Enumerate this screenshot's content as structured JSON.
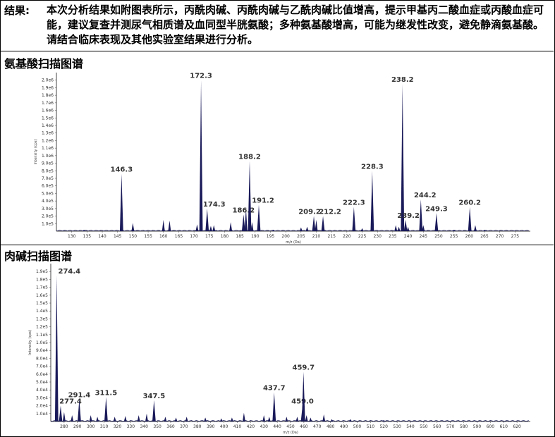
{
  "result": {
    "label": "结果:",
    "text": "本次分析结果如附图表所示，丙酰肉碱、丙酰肉碱与乙酰肉碱比值增高，提示甲基丙二酸血症或丙酸血症可能，建议复查并测尿气相质谱及血同型半胱氨酸；多种氨基酸增高，可能为继发性改变，避免静滴氨基酸。请结合临床表现及其他实验室结果进行分析。"
  },
  "chart_data": [
    {
      "type": "bar",
      "title": "氨基酸扫描图谱",
      "xlabel": "m/z (Da)",
      "ylabel": "Intensity (cps)",
      "xlim": [
        125,
        280
      ],
      "ylim": [
        0,
        2100000.0
      ],
      "xticks": [
        130,
        135,
        140,
        145,
        150,
        155,
        160,
        165,
        170,
        175,
        180,
        185,
        190,
        195,
        200,
        205,
        210,
        215,
        220,
        225,
        230,
        235,
        240,
        245,
        250,
        255,
        260,
        265,
        270,
        275
      ],
      "xtick_labels": [
        "130",
        "135",
        "140",
        "145",
        "150",
        "155",
        "160",
        "165",
        "170",
        "175",
        "180",
        "185",
        "190",
        "195",
        "200",
        "205",
        "210",
        "215",
        "220",
        "225",
        "230",
        "235",
        "240",
        "245",
        "250",
        "255",
        "260",
        "265",
        "270",
        "275"
      ],
      "yticks": [
        100000.0,
        200000.0,
        300000.0,
        400000.0,
        500000.0,
        600000.0,
        700000.0,
        800000.0,
        900000.0,
        1000000.0,
        1100000.0,
        1200000.0,
        1300000.0,
        1400000.0,
        1500000.0,
        1600000.0,
        1700000.0,
        1800000.0,
        1900000.0,
        2000000.0
      ],
      "ytick_labels": [
        "1.0e5",
        "2.0e5",
        "3.0e5",
        "4.0e5",
        "5.0e5",
        "6.0e5",
        "7.0e5",
        "8.0e5",
        "9.0e5",
        "1.0e6",
        "1.1e6",
        "1.2e6",
        "1.3e6",
        "1.4e6",
        "1.5e6",
        "1.6e6",
        "1.7e6",
        "1.8e6",
        "1.9e6",
        "2.0e6"
      ],
      "peaks": [
        {
          "x": 146.3,
          "y": 760000,
          "label": "146.3"
        },
        {
          "x": 172.3,
          "y": 2000000,
          "label": "172.3"
        },
        {
          "x": 174.3,
          "y": 300000,
          "label": "174.3"
        },
        {
          "x": 186.2,
          "y": 220000,
          "label": "186.2"
        },
        {
          "x": 188.2,
          "y": 930000,
          "label": "188.2"
        },
        {
          "x": 191.2,
          "y": 350000,
          "label": "191.2"
        },
        {
          "x": 209.2,
          "y": 200000,
          "label": "209.2"
        },
        {
          "x": 212.2,
          "y": 200000,
          "label": "212.2"
        },
        {
          "x": 222.3,
          "y": 320000,
          "label": "222.3"
        },
        {
          "x": 228.3,
          "y": 800000,
          "label": "228.3"
        },
        {
          "x": 238.2,
          "y": 1950000,
          "label": "238.2"
        },
        {
          "x": 239.2,
          "y": 150000,
          "label": "239.2"
        },
        {
          "x": 244.2,
          "y": 420000,
          "label": "244.2"
        },
        {
          "x": 249.3,
          "y": 240000,
          "label": "249.3"
        },
        {
          "x": 260.2,
          "y": 320000,
          "label": "260.2"
        }
      ],
      "minor_peaks": [
        {
          "x": 134,
          "y": 20000
        },
        {
          "x": 150,
          "y": 110000
        },
        {
          "x": 160,
          "y": 150000
        },
        {
          "x": 162,
          "y": 140000
        },
        {
          "x": 171,
          "y": 90000
        },
        {
          "x": 175.5,
          "y": 70000
        },
        {
          "x": 176.5,
          "y": 80000
        },
        {
          "x": 182,
          "y": 120000
        },
        {
          "x": 187,
          "y": 300000
        },
        {
          "x": 189,
          "y": 120000
        },
        {
          "x": 196,
          "y": 20000
        },
        {
          "x": 205,
          "y": 50000
        },
        {
          "x": 207,
          "y": 60000
        },
        {
          "x": 210,
          "y": 150000
        },
        {
          "x": 225,
          "y": 40000
        },
        {
          "x": 236,
          "y": 80000
        },
        {
          "x": 237,
          "y": 60000
        },
        {
          "x": 240,
          "y": 60000
        },
        {
          "x": 245,
          "y": 80000
        },
        {
          "x": 255,
          "y": 20000
        },
        {
          "x": 262,
          "y": 80000
        },
        {
          "x": 265,
          "y": 20000
        }
      ]
    },
    {
      "type": "bar",
      "title": "肉碱扫描图谱",
      "xlabel": "m/z (Da)",
      "ylabel": "Intensity (cps)",
      "xlim": [
        270,
        630
      ],
      "ylim": [
        0,
        200000.0
      ],
      "xticks": [
        280,
        290,
        300,
        310,
        320,
        330,
        340,
        350,
        360,
        370,
        380,
        390,
        400,
        410,
        420,
        430,
        440,
        450,
        460,
        470,
        480,
        490,
        500,
        510,
        520,
        530,
        540,
        550,
        560,
        570,
        580,
        590,
        600,
        610,
        620
      ],
      "xtick_labels": [
        "280",
        "290",
        "300",
        "310",
        "320",
        "330",
        "340",
        "350",
        "360",
        "370",
        "380",
        "390",
        "400",
        "410",
        "420",
        "430",
        "440",
        "450",
        "460",
        "470",
        "480",
        "490",
        "500",
        "510",
        "520",
        "530",
        "540",
        "550",
        "560",
        "570",
        "580",
        "590",
        "600",
        "610",
        "620"
      ],
      "yticks": [
        10000.0,
        20000.0,
        30000.0,
        40000.0,
        50000.0,
        60000.0,
        70000.0,
        80000.0,
        90000.0,
        100000.0,
        110000.0,
        120000.0,
        130000.0,
        140000.0,
        150000.0,
        160000.0,
        170000.0,
        180000.0,
        190000.0
      ],
      "ytick_labels": [
        "1.0e4",
        "2.0e4",
        "3.0e4",
        "4.0e4",
        "5.0e4",
        "6.0e4",
        "7.0e4",
        "8.0e4",
        "9.0e4",
        "1.0e5",
        "1.1e5",
        "1.2e5",
        "1.3e5",
        "1.4e5",
        "1.5e5",
        "1.6e5",
        "1.7e5",
        "1.8e5",
        "1.9e5"
      ],
      "peaks": [
        {
          "x": 274.4,
          "y": 185000,
          "label": "274.4"
        },
        {
          "x": 277.4,
          "y": 20000,
          "label": "277.4"
        },
        {
          "x": 291.4,
          "y": 28000,
          "label": "291.4"
        },
        {
          "x": 311.5,
          "y": 31000,
          "label": "311.5"
        },
        {
          "x": 347.5,
          "y": 27000,
          "label": "347.5"
        },
        {
          "x": 437.7,
          "y": 37000,
          "label": "437.7"
        },
        {
          "x": 459.0,
          "y": 20000,
          "label": "459.0"
        },
        {
          "x": 459.7,
          "y": 63000,
          "label": "459.7"
        }
      ],
      "minor_peaks": [
        {
          "x": 280,
          "y": 12000
        },
        {
          "x": 286,
          "y": 8000
        },
        {
          "x": 300,
          "y": 8000
        },
        {
          "x": 305,
          "y": 6000
        },
        {
          "x": 318,
          "y": 6000
        },
        {
          "x": 326,
          "y": 7000
        },
        {
          "x": 336,
          "y": 8000
        },
        {
          "x": 342,
          "y": 10000
        },
        {
          "x": 356,
          "y": 6000
        },
        {
          "x": 364,
          "y": 5000
        },
        {
          "x": 372,
          "y": 6000
        },
        {
          "x": 386,
          "y": 5000
        },
        {
          "x": 398,
          "y": 4000
        },
        {
          "x": 406,
          "y": 5000
        },
        {
          "x": 415,
          "y": 11000
        },
        {
          "x": 430,
          "y": 8000
        },
        {
          "x": 434,
          "y": 6000
        },
        {
          "x": 447,
          "y": 6000
        },
        {
          "x": 455,
          "y": 6000
        },
        {
          "x": 462,
          "y": 8000
        },
        {
          "x": 465,
          "y": 5000
        },
        {
          "x": 475,
          "y": 9000
        },
        {
          "x": 481,
          "y": 3000
        },
        {
          "x": 495,
          "y": 3000
        },
        {
          "x": 520,
          "y": 2000
        }
      ]
    }
  ]
}
